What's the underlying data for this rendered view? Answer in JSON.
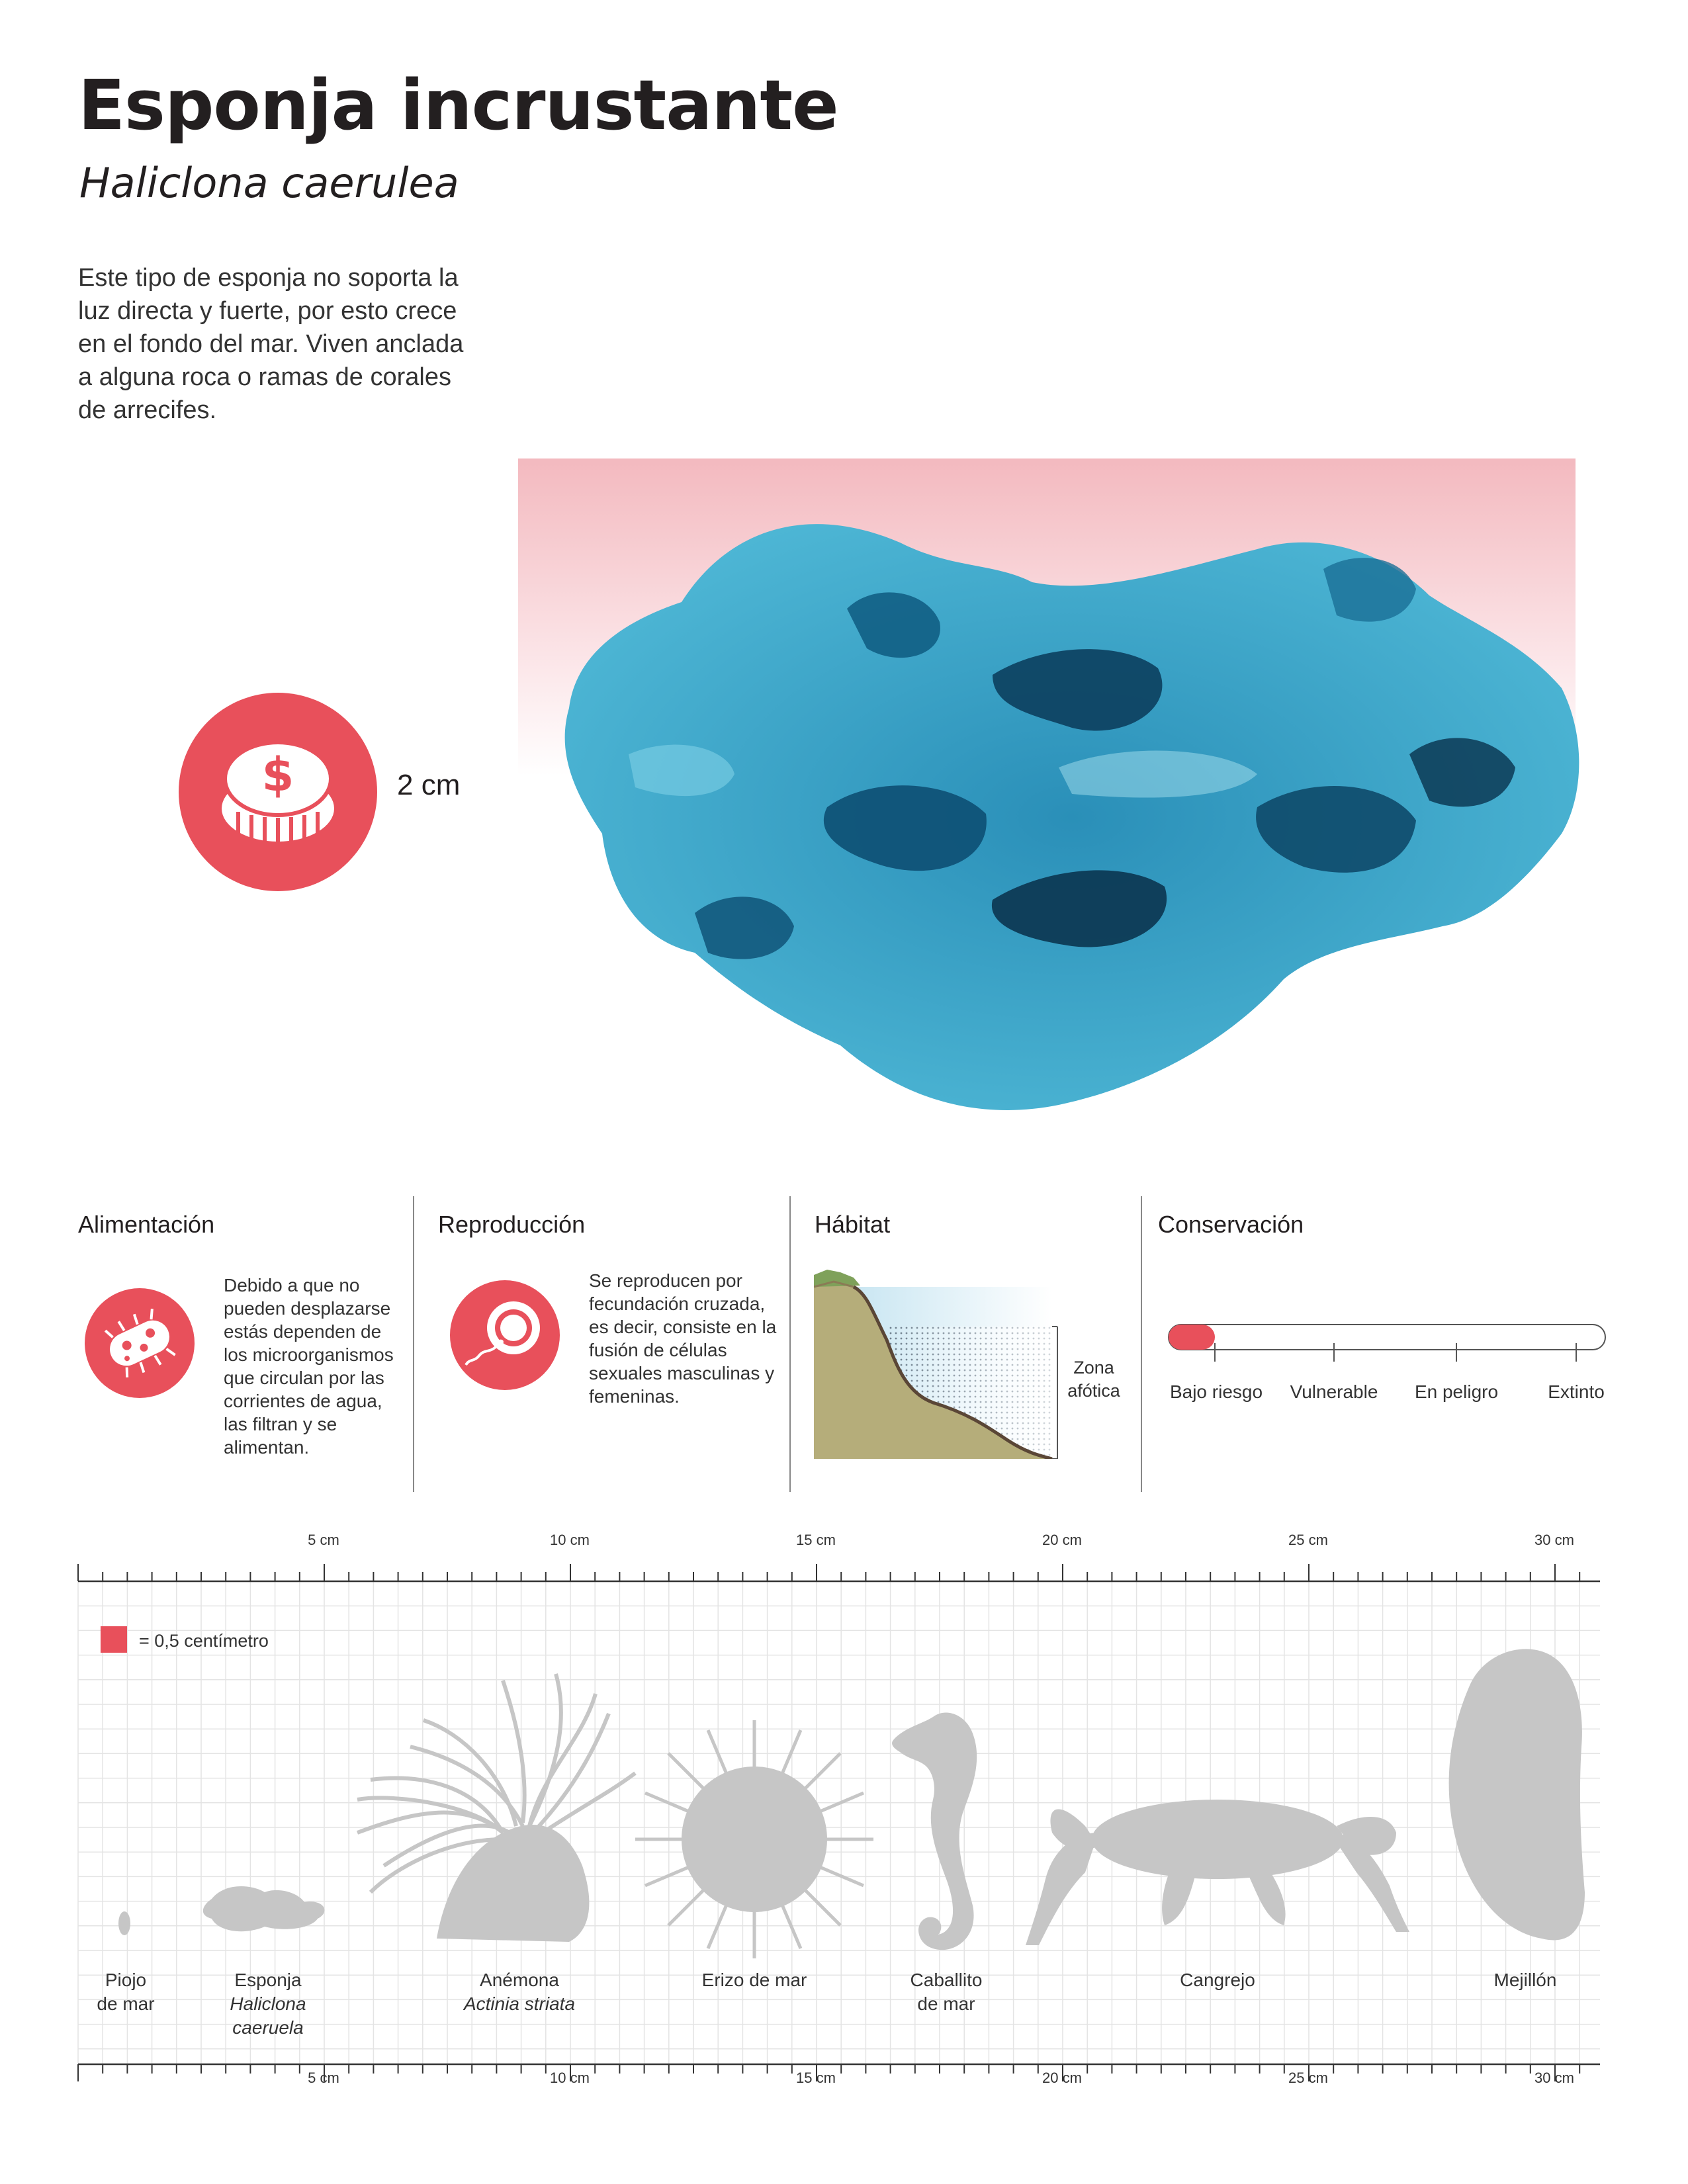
{
  "header": {
    "title": "Esponja incrustante",
    "subtitle": "Haliclona caerulea",
    "intro": "Este tipo de esponja no soporta la luz directa y fuerte,  por esto crece en el fondo del mar. Viven anclada a alguna roca o ramas de corales de arrecifes."
  },
  "hero": {
    "size_value": "2 cm",
    "icon": "coin-icon",
    "colors": {
      "accent": "#e8505b",
      "sponge_light": "#4fb8d6",
      "sponge_dark": "#0c4f73"
    }
  },
  "sections": {
    "alimentacion": {
      "title": "Alimentación",
      "icon": "bacteria-icon",
      "text": "Debido a que no pueden desplazarse estás dependen de los microorganismos que circulan por las corrientes de agua, las filtran y se alimentan."
    },
    "reproduccion": {
      "title": "Reproducción",
      "icon": "sperm-egg-icon",
      "text": "Se reproducen por fecundación cruzada, es decir, consiste en la fusión de células sexuales masculinas y femeninas."
    },
    "habitat": {
      "title": "Hábitat",
      "zone_label": "Zona afótica"
    },
    "conservacion": {
      "title": "Conservación",
      "status_level": 0,
      "levels": [
        "Bajo riesgo",
        "Vulnerable",
        "En peligro",
        "Extinto"
      ]
    }
  },
  "scale": {
    "top_ticks": [
      "5 cm",
      "10 cm",
      "15 cm",
      "20 cm",
      "25 cm",
      "30 cm"
    ],
    "bottom_ticks": [
      "5 cm",
      "10 cm",
      "15 cm",
      "20 cm",
      "25 cm",
      "30 cm"
    ],
    "legend": "= 0,5 centímetro",
    "animals": [
      {
        "name": "Piojo",
        "name2": "de mar",
        "italic": ""
      },
      {
        "name": "Esponja",
        "name2": "",
        "italic": "Haliclona caeruela"
      },
      {
        "name": "Anémona",
        "name2": "",
        "italic": "Actinia striata"
      },
      {
        "name": "Erizo de mar",
        "name2": "",
        "italic": ""
      },
      {
        "name": "Caballito",
        "name2": "de mar",
        "italic": ""
      },
      {
        "name": "Cangrejo",
        "name2": "",
        "italic": ""
      },
      {
        "name": "Mejillón",
        "name2": "",
        "italic": ""
      }
    ]
  }
}
